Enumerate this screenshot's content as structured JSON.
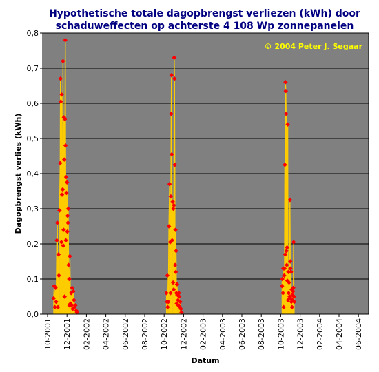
{
  "chart_data": {
    "type": "line",
    "title_lines": [
      "Hypothetische totale dagopbrengst verliezen (kWh) door",
      "schaduweffecten op achterste 4 108 Wp zonnepanelen"
    ],
    "annotation": "© 2004 Peter J. Segaar",
    "xlabel": "Datum",
    "ylabel": "Dagopbrengst verlies (kWh)",
    "ylim": [
      0,
      0.8
    ],
    "y_ticks": [
      "0,0",
      "0,1",
      "0,2",
      "0,3",
      "0,4",
      "0,5",
      "0,6",
      "0,7",
      "0,8"
    ],
    "x_ticks": [
      "10-2001",
      "12-2001",
      "02-2002",
      "04-2002",
      "06-2002",
      "08-2002",
      "10-2002",
      "12-2002",
      "02-2003",
      "04-2003",
      "06-2003",
      "08-2003",
      "10-2003",
      "12-2003",
      "02-2004",
      "04-2004",
      "06-2004"
    ],
    "grid": true,
    "legend": "none",
    "colors": {
      "plot_background": "#808080",
      "line": "#ffcc00",
      "marker": "#ff0000",
      "title": "#000080",
      "annotation": "#ffff00"
    },
    "series": [
      {
        "points": [
          [
            "2001-10-20",
            0.045
          ],
          [
            "2001-10-22",
            0.08
          ],
          [
            "2001-10-24",
            0.02
          ],
          [
            "2001-10-26",
            0.075
          ],
          [
            "2001-10-28",
            0.035
          ],
          [
            "2001-10-30",
            0.21
          ],
          [
            "2001-11-01",
            0.26
          ],
          [
            "2001-11-03",
            0.02
          ],
          [
            "2001-11-05",
            0.17
          ],
          [
            "2001-11-06",
            0.11
          ],
          [
            "2001-11-08",
            0.295
          ],
          [
            "2001-11-10",
            0.43
          ],
          [
            "2001-11-11",
            0.67
          ],
          [
            "2001-11-12",
            0.605
          ],
          [
            "2001-11-14",
            0.205
          ],
          [
            "2001-11-15",
            0.625
          ],
          [
            "2001-11-16",
            0.34
          ],
          [
            "2001-11-18",
            0.355
          ],
          [
            "2001-11-19",
            0.72
          ],
          [
            "2001-11-20",
            0.195
          ],
          [
            "2001-11-21",
            0.24
          ],
          [
            "2001-11-22",
            0.56
          ],
          [
            "2001-11-23",
            0.44
          ],
          [
            "2001-11-24",
            0.05
          ],
          [
            "2001-11-25",
            0.555
          ],
          [
            "2001-11-26",
            0.78
          ],
          [
            "2001-11-27",
            0.48
          ],
          [
            "2001-11-28",
            0.21
          ],
          [
            "2001-11-29",
            0.39
          ],
          [
            "2001-11-30",
            0.345
          ],
          [
            "2001-12-01",
            0.375
          ],
          [
            "2001-12-02",
            0.235
          ],
          [
            "2001-12-03",
            0.28
          ],
          [
            "2001-12-04",
            0.26
          ],
          [
            "2001-12-05",
            0.3
          ],
          [
            "2001-12-06",
            0.14
          ],
          [
            "2001-12-08",
            0.1
          ],
          [
            "2001-12-09",
            0.025
          ],
          [
            "2001-12-10",
            0.165
          ],
          [
            "2001-12-12",
            0.03
          ],
          [
            "2001-12-14",
            0.06
          ],
          [
            "2001-12-15",
            0.025
          ],
          [
            "2001-12-17",
            0.075
          ],
          [
            "2001-12-19",
            0.015
          ],
          [
            "2001-12-21",
            0.065
          ],
          [
            "2001-12-23",
            0.04
          ],
          [
            "2001-12-25",
            0.02
          ],
          [
            "2001-12-27",
            0.025
          ],
          [
            "2001-12-30",
            0.01
          ],
          [
            "2002-01-02",
            0.005
          ],
          [
            "2002-10-08",
            0.06
          ],
          [
            "2002-10-10",
            0.035
          ],
          [
            "2002-10-11",
            0.11
          ],
          [
            "2002-10-12",
            0.02
          ],
          [
            "2002-10-14",
            0.035
          ],
          [
            "2002-10-16",
            0.25
          ],
          [
            "2002-10-18",
            0.37
          ],
          [
            "2002-10-20",
            0.205
          ],
          [
            "2002-10-21",
            0.06
          ],
          [
            "2002-10-22",
            0.335
          ],
          [
            "2002-10-23",
            0.57
          ],
          [
            "2002-10-24",
            0.68
          ],
          [
            "2002-10-25",
            0.455
          ],
          [
            "2002-10-26",
            0.21
          ],
          [
            "2002-10-28",
            0.32
          ],
          [
            "2002-10-29",
            0.09
          ],
          [
            "2002-10-30",
            0.3
          ],
          [
            "2002-10-31",
            0.07
          ],
          [
            "2002-11-01",
            0.31
          ],
          [
            "2002-11-02",
            0.73
          ],
          [
            "2002-11-03",
            0.67
          ],
          [
            "2002-11-04",
            0.425
          ],
          [
            "2002-11-05",
            0.14
          ],
          [
            "2002-11-06",
            0.24
          ],
          [
            "2002-11-07",
            0.12
          ],
          [
            "2002-11-08",
            0.18
          ],
          [
            "2002-11-09",
            0.06
          ],
          [
            "2002-11-10",
            0.03
          ],
          [
            "2002-11-11",
            0.085
          ],
          [
            "2002-11-12",
            0.055
          ],
          [
            "2002-11-14",
            0.04
          ],
          [
            "2002-11-15",
            0.025
          ],
          [
            "2002-11-17",
            0.06
          ],
          [
            "2002-11-18",
            0.05
          ],
          [
            "2002-11-20",
            0.02
          ],
          [
            "2002-11-21",
            0.035
          ],
          [
            "2002-11-23",
            0.015
          ],
          [
            "2002-11-25",
            0.005
          ],
          [
            "2003-10-05",
            0.08
          ],
          [
            "2003-10-06",
            0.1
          ],
          [
            "2003-10-08",
            0.06
          ],
          [
            "2003-10-09",
            0.13
          ],
          [
            "2003-10-10",
            0.02
          ],
          [
            "2003-10-12",
            0.11
          ],
          [
            "2003-10-13",
            0.13
          ],
          [
            "2003-10-14",
            0.425
          ],
          [
            "2003-10-15",
            0.17
          ],
          [
            "2003-10-16",
            0.66
          ],
          [
            "2003-10-17",
            0.635
          ],
          [
            "2003-10-18",
            0.57
          ],
          [
            "2003-10-19",
            0.18
          ],
          [
            "2003-10-20",
            0.14
          ],
          [
            "2003-10-21",
            0.19
          ],
          [
            "2003-10-22",
            0.095
          ],
          [
            "2003-10-23",
            0.54
          ],
          [
            "2003-10-24",
            0.04
          ],
          [
            "2003-10-25",
            0.12
          ],
          [
            "2003-10-26",
            0.06
          ],
          [
            "2003-10-27",
            0.09
          ],
          [
            "2003-10-29",
            0.05
          ],
          [
            "2003-10-30",
            0.325
          ],
          [
            "2003-10-31",
            0.15
          ],
          [
            "2003-11-01",
            0.13
          ],
          [
            "2003-11-02",
            0.045
          ],
          [
            "2003-11-03",
            0.12
          ],
          [
            "2003-11-04",
            0.035
          ],
          [
            "2003-11-05",
            0.07
          ],
          [
            "2003-11-06",
            0.02
          ],
          [
            "2003-11-07",
            0.055
          ],
          [
            "2003-11-08",
            0.04
          ],
          [
            "2003-11-09",
            0.065
          ],
          [
            "2003-11-10",
            0.075
          ],
          [
            "2003-11-11",
            0.205
          ],
          [
            "2003-11-12",
            0.05
          ],
          [
            "2003-11-13",
            0.035
          ]
        ]
      }
    ]
  }
}
